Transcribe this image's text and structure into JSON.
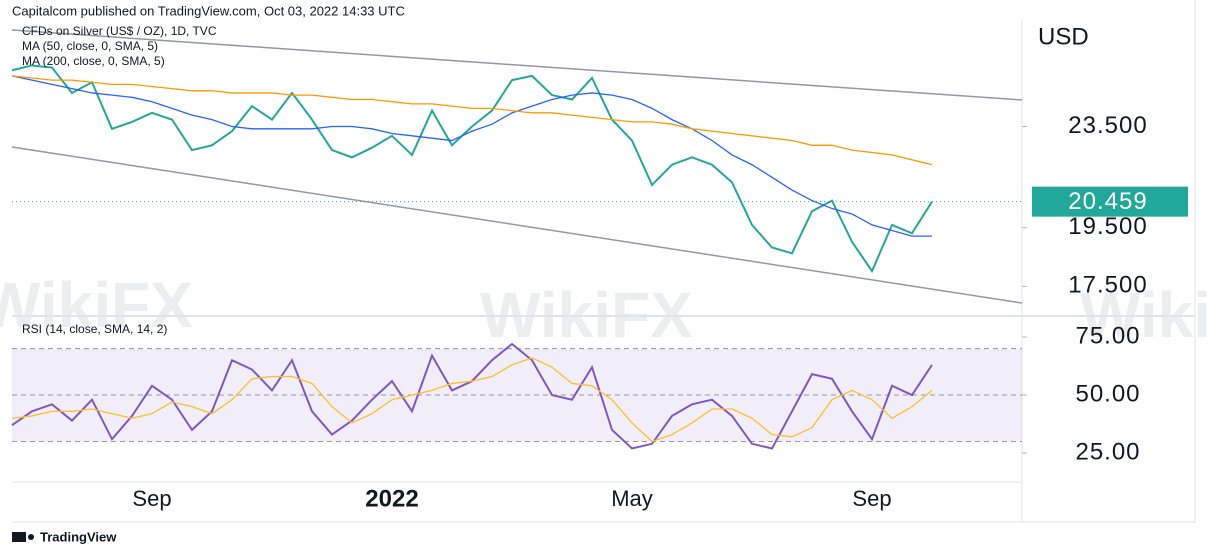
{
  "header": "Capitalcom published on TradingView.com, Oct 03, 2022 14:33 UTC",
  "footer": "TradingView",
  "watermark": "WikiFX",
  "chart_data": [
    {
      "type": "line",
      "y_label": "USD",
      "log_scale": true,
      "ylim": [
        16.6,
        28.6
      ],
      "yticks": [
        {
          "value": 23.5,
          "label": "23.500"
        },
        {
          "value": 19.5,
          "label": "19.500"
        },
        {
          "value": 17.5,
          "label": "17.500"
        }
      ],
      "series": [
        {
          "name": "CFDs on Silver (US$ / OZ), 1D, TVC",
          "color": "#26a69a",
          "values": [
            26.07,
            26.3,
            26.2,
            25.0,
            25.5,
            23.4,
            23.7,
            24.1,
            23.8,
            22.5,
            22.7,
            23.3,
            24.4,
            23.8,
            25.0,
            23.8,
            22.5,
            22.2,
            22.6,
            23.1,
            22.3,
            24.2,
            22.7,
            23.5,
            24.2,
            25.6,
            25.8,
            24.9,
            24.7,
            25.7,
            23.8,
            22.9,
            21.1,
            21.9,
            22.2,
            21.9,
            21.2,
            19.6,
            18.8,
            18.6,
            20.1,
            20.5,
            19.0,
            18.0,
            19.6,
            19.3,
            20.459
          ]
        },
        {
          "name": "MA (50, close, 0, SMA, 5)",
          "color": "#2962ff",
          "values": [
            25.8,
            25.6,
            25.4,
            25.2,
            25.0,
            24.9,
            24.8,
            24.6,
            24.3,
            24.0,
            23.8,
            23.5,
            23.4,
            23.4,
            23.4,
            23.4,
            23.5,
            23.5,
            23.4,
            23.2,
            23.1,
            23.0,
            22.9,
            23.3,
            23.6,
            24.1,
            24.4,
            24.7,
            24.9,
            25.0,
            24.9,
            24.7,
            24.3,
            23.8,
            23.4,
            22.9,
            22.3,
            21.9,
            21.4,
            20.9,
            20.5,
            20.2,
            20.0,
            19.6,
            19.4,
            19.2,
            19.2
          ]
        },
        {
          "name": "MA (200, close, 0, SMA, 5)",
          "color": "#ff9800",
          "values": [
            25.8,
            25.7,
            25.6,
            25.6,
            25.5,
            25.4,
            25.4,
            25.3,
            25.2,
            25.1,
            25.1,
            25.0,
            25.0,
            25.0,
            24.9,
            24.9,
            24.8,
            24.7,
            24.7,
            24.6,
            24.5,
            24.5,
            24.4,
            24.3,
            24.3,
            24.2,
            24.1,
            24.1,
            24.0,
            23.9,
            23.8,
            23.7,
            23.7,
            23.6,
            23.4,
            23.3,
            23.2,
            23.1,
            23.0,
            22.9,
            22.7,
            22.7,
            22.5,
            22.4,
            22.3,
            22.1,
            21.9
          ]
        }
      ]
    },
    {
      "type": "line",
      "categories": [
        null,
        null,
        null,
        null,
        null,
        null,
        null,
        "Sep",
        null,
        null,
        null,
        null,
        null,
        null,
        null,
        null,
        null,
        null,
        null,
        "2022",
        null,
        null,
        null,
        null,
        null,
        null,
        null,
        null,
        null,
        null,
        null,
        "May",
        null,
        null,
        null,
        null,
        null,
        null,
        null,
        null,
        null,
        null,
        null,
        "Sep",
        null,
        null,
        null
      ],
      "ylim": [
        13.4,
        83.2
      ],
      "yticks": [
        {
          "value": 75,
          "label": "75.00"
        },
        {
          "value": 50,
          "label": "50.00"
        },
        {
          "value": 25,
          "label": "25.00"
        }
      ],
      "levels": [
        70,
        50,
        30
      ],
      "series": [
        {
          "name": "RSI (14, close, SMA, 14, 2)",
          "color": "#7e57c2",
          "values": [
            37,
            43,
            46,
            39,
            48,
            31,
            41,
            54,
            48,
            35,
            43,
            65,
            61,
            52,
            65,
            43,
            33,
            39,
            48,
            56,
            43,
            67,
            52,
            56,
            65,
            72,
            65,
            50,
            48,
            62,
            35,
            27,
            29,
            41,
            46,
            48,
            41,
            29,
            27,
            43,
            59,
            57,
            43,
            31,
            54,
            50,
            63
          ]
        },
        {
          "color": "#fbc02d",
          "values": [
            40,
            41,
            43,
            43,
            44,
            42,
            40,
            42,
            47,
            45,
            42,
            48,
            57,
            58,
            58,
            55,
            45,
            38,
            42,
            48,
            50,
            52,
            55,
            56,
            58,
            63,
            66,
            62,
            55,
            54,
            48,
            38,
            30,
            33,
            38,
            44,
            44,
            40,
            33,
            32,
            36,
            48,
            52,
            48,
            40,
            45,
            52
          ]
        }
      ]
    }
  ]
}
